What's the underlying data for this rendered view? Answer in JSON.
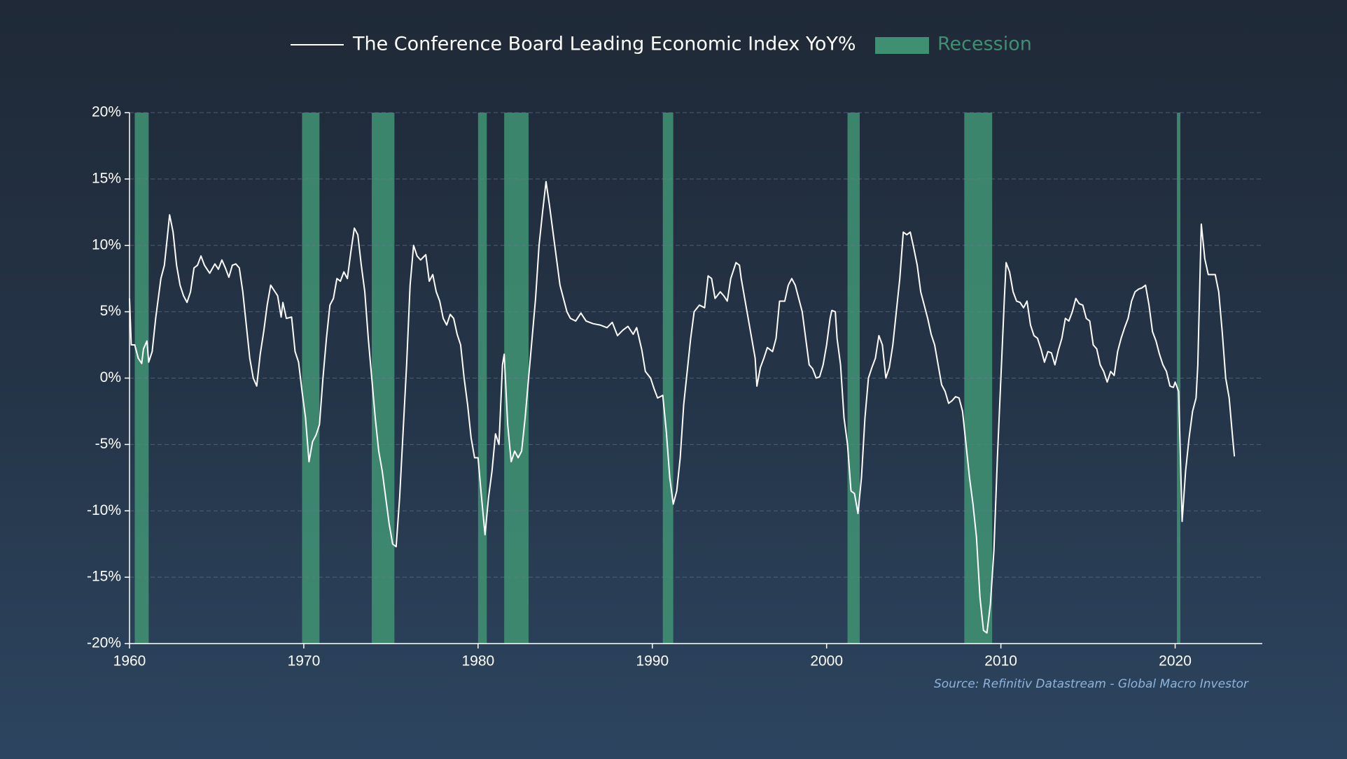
{
  "chart_data": {
    "type": "line",
    "x": [
      1960.0,
      1960.1,
      1960.3,
      1960.5,
      1960.7,
      1960.8,
      1961.0,
      1961.1,
      1961.3,
      1961.5,
      1961.8,
      1962.0,
      1962.2,
      1962.3,
      1962.5,
      1962.7,
      1962.9,
      1963.1,
      1963.3,
      1963.5,
      1963.7,
      1963.9,
      1964.1,
      1964.3,
      1964.6,
      1964.9,
      1965.1,
      1965.3,
      1965.5,
      1965.7,
      1965.9,
      1966.1,
      1966.3,
      1966.5,
      1966.7,
      1966.9,
      1967.1,
      1967.3,
      1967.5,
      1967.7,
      1967.9,
      1968.1,
      1968.3,
      1968.5,
      1968.7,
      1968.8,
      1969.0,
      1969.3,
      1969.5,
      1969.7,
      1969.9,
      1970.1,
      1970.3,
      1970.5,
      1970.7,
      1970.9,
      1971.1,
      1971.3,
      1971.5,
      1971.7,
      1971.9,
      1972.1,
      1972.3,
      1972.5,
      1972.7,
      1972.9,
      1973.1,
      1973.3,
      1973.5,
      1973.7,
      1973.9,
      1974.1,
      1974.3,
      1974.5,
      1974.7,
      1974.9,
      1975.1,
      1975.3,
      1975.5,
      1975.7,
      1975.9,
      1976.1,
      1976.3,
      1976.5,
      1976.7,
      1977.0,
      1977.2,
      1977.4,
      1977.6,
      1977.8,
      1978.0,
      1978.2,
      1978.4,
      1978.6,
      1978.8,
      1979.0,
      1979.2,
      1979.4,
      1979.6,
      1979.8,
      1980.0,
      1980.2,
      1980.4,
      1980.6,
      1980.8,
      1981.0,
      1981.2,
      1981.4,
      1981.5,
      1981.7,
      1981.9,
      1982.1,
      1982.3,
      1982.5,
      1982.7,
      1982.9,
      1983.1,
      1983.3,
      1983.5,
      1983.7,
      1983.9,
      1984.1,
      1984.3,
      1984.5,
      1984.7,
      1984.9,
      1985.1,
      1985.3,
      1985.6,
      1985.9,
      1986.2,
      1986.6,
      1987.0,
      1987.4,
      1987.7,
      1988.0,
      1988.3,
      1988.6,
      1988.9,
      1989.1,
      1989.4,
      1989.6,
      1989.9,
      1990.1,
      1990.3,
      1990.6,
      1990.8,
      1991.0,
      1991.2,
      1991.4,
      1991.6,
      1991.8,
      1992.0,
      1992.2,
      1992.4,
      1992.7,
      1993.0,
      1993.2,
      1993.4,
      1993.6,
      1993.9,
      1994.1,
      1994.3,
      1994.5,
      1994.8,
      1995.0,
      1995.1,
      1995.3,
      1995.5,
      1995.7,
      1995.9,
      1996.0,
      1996.2,
      1996.4,
      1996.6,
      1996.9,
      1997.1,
      1997.3,
      1997.6,
      1997.8,
      1998.0,
      1998.2,
      1998.4,
      1998.6,
      1998.8,
      1999.0,
      1999.2,
      1999.4,
      1999.6,
      1999.8,
      2000.0,
      2000.2,
      2000.3,
      2000.5,
      2000.6,
      2000.8,
      2001.0,
      2001.2,
      2001.4,
      2001.6,
      2001.8,
      2002.0,
      2002.2,
      2002.4,
      2002.6,
      2002.8,
      2003.0,
      2003.2,
      2003.4,
      2003.6,
      2003.8,
      2004.0,
      2004.2,
      2004.4,
      2004.6,
      2004.8,
      2005.0,
      2005.2,
      2005.4,
      2005.6,
      2005.8,
      2006.0,
      2006.2,
      2006.4,
      2006.6,
      2006.8,
      2007.0,
      2007.2,
      2007.4,
      2007.6,
      2007.8,
      2008.0,
      2008.2,
      2008.4,
      2008.6,
      2008.8,
      2009.0,
      2009.2,
      2009.4,
      2009.6,
      2009.8,
      2010.0,
      2010.2,
      2010.3,
      2010.5,
      2010.7,
      2010.9,
      2011.1,
      2011.3,
      2011.5,
      2011.7,
      2011.9,
      2012.1,
      2012.3,
      2012.5,
      2012.7,
      2012.9,
      2013.1,
      2013.3,
      2013.5,
      2013.7,
      2013.9,
      2014.1,
      2014.3,
      2014.5,
      2014.7,
      2014.9,
      2015.1,
      2015.3,
      2015.5,
      2015.7,
      2015.9,
      2016.1,
      2016.3,
      2016.5,
      2016.7,
      2016.9,
      2017.1,
      2017.3,
      2017.5,
      2017.7,
      2017.9,
      2018.1,
      2018.3,
      2018.5,
      2018.7,
      2018.9,
      2019.1,
      2019.3,
      2019.5,
      2019.7,
      2019.9,
      2020.0,
      2020.2,
      2020.4,
      2020.6,
      2020.8,
      2021.0,
      2021.2,
      2021.3,
      2021.5,
      2021.7,
      2021.9,
      2022.1,
      2022.3,
      2022.5,
      2022.7,
      2022.9,
      2023.1,
      2023.3,
      2023.4
    ],
    "series": [
      {
        "name": "The Conference Board Leading Economic Index YoY%",
        "color": "#ffffff",
        "values": [
          6,
          2.5,
          2.5,
          1.5,
          1.1,
          2.2,
          2.8,
          1.2,
          2,
          4.5,
          7.5,
          8.5,
          11,
          12.3,
          11,
          8.5,
          7,
          6.2,
          5.7,
          6.5,
          8.3,
          8.5,
          9.2,
          8.5,
          7.9,
          8.6,
          8.2,
          8.9,
          8.3,
          7.6,
          8.5,
          8.6,
          8.3,
          6.5,
          4,
          1.5,
          0,
          -0.6,
          1.8,
          3.5,
          5.5,
          7,
          6.6,
          6.2,
          4.6,
          5.7,
          4.5,
          4.6,
          2,
          1.2,
          -1,
          -3,
          -6.3,
          -4.8,
          -4.3,
          -3.5,
          0,
          3,
          5.5,
          6,
          7.5,
          7.3,
          8,
          7.5,
          9.5,
          11.3,
          10.8,
          8.5,
          6.5,
          3,
          0,
          -3,
          -5.5,
          -7,
          -9,
          -11,
          -12.5,
          -12.7,
          -9,
          -4,
          1,
          7,
          10,
          9.2,
          8.9,
          9.3,
          7.3,
          7.8,
          6.5,
          5.8,
          4.5,
          4,
          4.8,
          4.5,
          3.3,
          2.5,
          0,
          -2,
          -4.5,
          -6,
          -6,
          -9,
          -11.8,
          -9,
          -7,
          -4.2,
          -5,
          1,
          1.8,
          -3.5,
          -6.3,
          -5.5,
          -6,
          -5.5,
          -3,
          0,
          3,
          6,
          10,
          12.5,
          14.8,
          13,
          11,
          9,
          7,
          6,
          5,
          4.5,
          4.3,
          4.9,
          4.3,
          4.1,
          4,
          3.8,
          4.2,
          3.2,
          3.6,
          3.9,
          3.3,
          3.8,
          2.1,
          0.5,
          0,
          -0.8,
          -1.5,
          -1.3,
          -4,
          -7.5,
          -9.5,
          -8.5,
          -6,
          -2,
          0.5,
          3,
          5,
          5.5,
          5.3,
          7.7,
          7.5,
          6,
          6.5,
          6.2,
          5.8,
          7.5,
          8.7,
          8.5,
          7.5,
          6,
          4.5,
          3,
          1.5,
          -0.6,
          0.8,
          1.5,
          2.3,
          2,
          3,
          5.8,
          5.8,
          7,
          7.5,
          7,
          6,
          5,
          3,
          1,
          0.7,
          0,
          0.1,
          1,
          2.5,
          4.5,
          5.1,
          5,
          3,
          1,
          -3,
          -5,
          -8.5,
          -8.7,
          -10.2,
          -7.5,
          -3,
          0,
          0.8,
          1.5,
          3.2,
          2.5,
          0,
          0.8,
          2.5,
          5,
          7.5,
          11,
          10.8,
          11,
          9.8,
          8.5,
          6.5,
          5.5,
          4.5,
          3.3,
          2.5,
          1,
          -0.5,
          -1,
          -1.9,
          -1.7,
          -1.4,
          -1.5,
          -2.5,
          -5,
          -7.5,
          -9.5,
          -12,
          -16.5,
          -19,
          -19.2,
          -17,
          -13,
          -6,
          0,
          6,
          8.7,
          8,
          6.5,
          5.8,
          5.7,
          5.3,
          5.8,
          4,
          3.2,
          3,
          2.2,
          1.2,
          2,
          1.9,
          1,
          2.1,
          3,
          4.5,
          4.3,
          5,
          6,
          5.6,
          5.5,
          4.5,
          4.3,
          2.5,
          2.2,
          1,
          0.5,
          -0.3,
          0.5,
          0.2,
          2,
          3,
          3.8,
          4.5,
          5.8,
          6.5,
          6.7,
          6.8,
          7,
          5.5,
          3.5,
          2.8,
          1.8,
          1,
          0.5,
          -0.6,
          -0.7,
          -0.3,
          -1,
          -10.8,
          -7,
          -4.5,
          -2.5,
          -1.5,
          1,
          11.6,
          9,
          7.8,
          7.8,
          7.8,
          6.5,
          3.5,
          0,
          -1.5,
          -4.5,
          -5.9
        ]
      }
    ],
    "recessions": {
      "name": "Recession",
      "color": "#3f8f72",
      "ranges": [
        [
          1960.3,
          1961.1
        ],
        [
          1969.9,
          1970.9
        ],
        [
          1973.9,
          1975.2
        ],
        [
          1980.0,
          1980.5
        ],
        [
          1981.5,
          1982.9
        ],
        [
          1990.6,
          1991.2
        ],
        [
          2001.2,
          2001.9
        ],
        [
          2007.9,
          2009.5
        ],
        [
          2020.1,
          2020.3
        ]
      ]
    },
    "xlim": [
      1960,
      2025
    ],
    "xticks": [
      1960,
      1970,
      1980,
      1990,
      2000,
      2010,
      2020
    ],
    "ylim": [
      -20,
      20
    ],
    "yticks": [
      {
        "value": -20,
        "label": "-20%"
      },
      {
        "value": -15,
        "label": "-15%"
      },
      {
        "value": -10,
        "label": "-10%"
      },
      {
        "value": -5,
        "label": "-5%"
      },
      {
        "value": 0,
        "label": "0%"
      },
      {
        "value": 5,
        "label": "5%"
      },
      {
        "value": 10,
        "label": "10%"
      },
      {
        "value": 15,
        "label": "15%"
      },
      {
        "value": 20,
        "label": "20%"
      }
    ],
    "grid": true,
    "source": "Source: Refinitiv Datastream - Global Macro Investor"
  }
}
